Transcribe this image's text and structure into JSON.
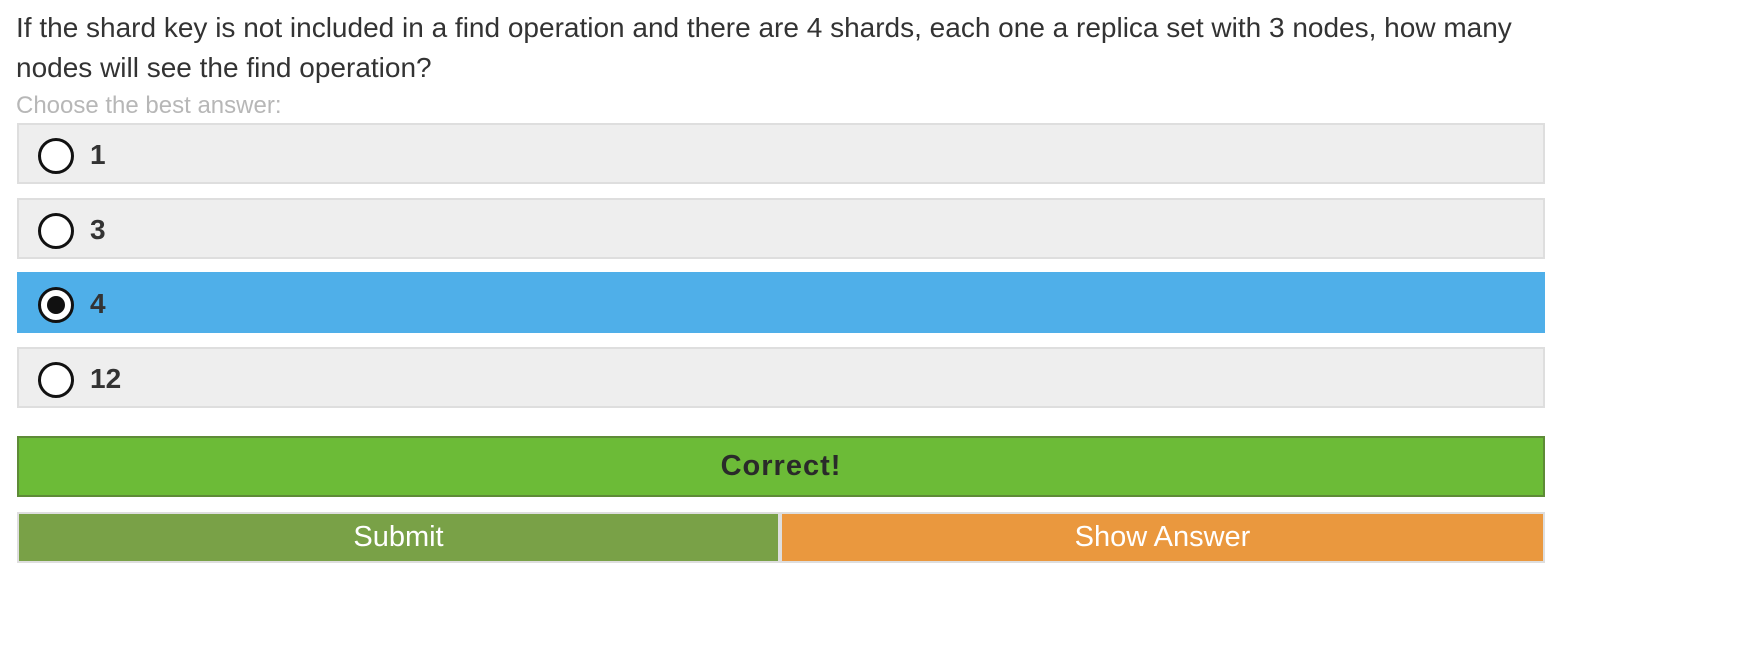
{
  "question": {
    "text": "If the shard key is not included in a find operation and there are 4 shards, each one a replica set with 3 nodes, how many nodes will see the find operation?",
    "instruction": "Choose the best answer:"
  },
  "options": [
    {
      "label": "1",
      "selected": false
    },
    {
      "label": "3",
      "selected": false
    },
    {
      "label": "4",
      "selected": true
    },
    {
      "label": "12",
      "selected": false
    }
  ],
  "feedback": {
    "text": "Correct!"
  },
  "buttons": {
    "submit_label": "Submit",
    "show_answer_label": "Show Answer"
  },
  "colors": {
    "option_bg": "#eeeeee",
    "selected_bg": "#4fafe9",
    "correct_bg": "#6cbb37",
    "submit_bg": "#79a147",
    "show_answer_bg": "#ea983e",
    "instruction_text": "#b7b7b7"
  }
}
